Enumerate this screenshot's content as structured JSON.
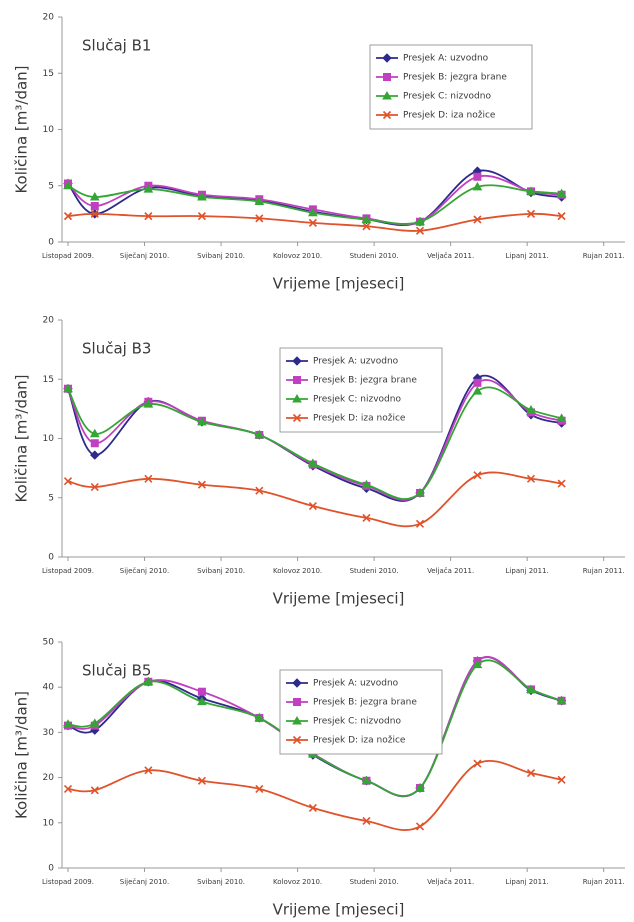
{
  "chart_data": [
    {
      "type": "line",
      "title": "Slučaj B1",
      "xlabel": "Vrijeme [mjeseci]",
      "ylabel": "Količina [m³/dan]",
      "x": [
        0,
        0.35,
        1.05,
        1.75,
        2.5,
        3.2,
        3.9,
        4.6,
        5.35,
        6.05,
        6.45
      ],
      "xlim": [
        0,
        7.2
      ],
      "xticks": [
        {
          "value": 0,
          "label": "Listopad 2009."
        },
        {
          "value": 1,
          "label": "Siječanj 2010."
        },
        {
          "value": 2,
          "label": "Svibanj 2010."
        },
        {
          "value": 3,
          "label": "Kolovoz 2010."
        },
        {
          "value": 4,
          "label": "Studeni 2010."
        },
        {
          "value": 5,
          "label": "Veljača 2011."
        },
        {
          "value": 6,
          "label": "Lipanj 2011."
        },
        {
          "value": 7,
          "label": "Rujan 2011."
        }
      ],
      "ylim": [
        0,
        20
      ],
      "yticks": [
        0,
        5,
        10,
        15,
        20
      ],
      "grid": false,
      "legend_position": "upper right",
      "series": [
        {
          "name": "Presjek A: uzvodno",
          "color": "#2e2a8c",
          "marker": "diamond",
          "values": [
            5.2,
            2.5,
            4.8,
            4.1,
            3.7,
            2.7,
            2.0,
            1.8,
            6.3,
            4.4,
            4.0
          ]
        },
        {
          "name": "Presjek B: jezgra brane",
          "color": "#c13fc1",
          "marker": "square",
          "values": [
            5.2,
            3.2,
            5.0,
            4.2,
            3.8,
            2.9,
            2.1,
            1.8,
            5.8,
            4.5,
            4.2
          ]
        },
        {
          "name": "Presjek C: nizvodno",
          "color": "#35a535",
          "marker": "triangle",
          "values": [
            5.0,
            4.0,
            4.7,
            4.0,
            3.6,
            2.6,
            2.0,
            1.8,
            4.9,
            4.5,
            4.3
          ]
        },
        {
          "name": "Presjek D: iza nožice",
          "color": "#e0522a",
          "marker": "x",
          "values": [
            2.3,
            2.5,
            2.3,
            2.3,
            2.1,
            1.7,
            1.4,
            1.0,
            2.0,
            2.5,
            2.3
          ]
        }
      ]
    },
    {
      "type": "line",
      "title": "Slučaj B3",
      "xlabel": "Vrijeme [mjeseci]",
      "ylabel": "Količina [m³/dan]",
      "x": [
        0,
        0.35,
        1.05,
        1.75,
        2.5,
        3.2,
        3.9,
        4.6,
        5.35,
        6.05,
        6.45
      ],
      "xlim": [
        0,
        7.2
      ],
      "xticks": [
        {
          "value": 0,
          "label": "Listopad 2009."
        },
        {
          "value": 1,
          "label": "Siječanj 2010."
        },
        {
          "value": 2,
          "label": "Svibanj 2010."
        },
        {
          "value": 3,
          "label": "Kolovoz 2010."
        },
        {
          "value": 4,
          "label": "Studeni 2010."
        },
        {
          "value": 5,
          "label": "Veljača 2011."
        },
        {
          "value": 6,
          "label": "Lipanj 2011."
        },
        {
          "value": 7,
          "label": "Rujan 2011."
        }
      ],
      "ylim": [
        0,
        20
      ],
      "yticks": [
        0,
        5,
        10,
        15,
        20
      ],
      "grid": false,
      "legend_position": "upper center",
      "series": [
        {
          "name": "Presjek A: uzvodno",
          "color": "#2e2a8c",
          "marker": "diamond",
          "values": [
            14.2,
            8.6,
            13.1,
            11.4,
            10.3,
            7.7,
            5.8,
            5.4,
            15.1,
            12.0,
            11.3
          ]
        },
        {
          "name": "Presjek B: jezgra brane",
          "color": "#c13fc1",
          "marker": "square",
          "values": [
            14.2,
            9.6,
            13.1,
            11.5,
            10.3,
            7.8,
            6.0,
            5.4,
            14.7,
            12.2,
            11.5
          ]
        },
        {
          "name": "Presjek C: nizvodno",
          "color": "#35a535",
          "marker": "triangle",
          "values": [
            14.2,
            10.4,
            12.9,
            11.4,
            10.3,
            7.9,
            6.1,
            5.4,
            14.0,
            12.4,
            11.7
          ]
        },
        {
          "name": "Presjek D: iza nožice",
          "color": "#e0522a",
          "marker": "x",
          "values": [
            6.4,
            5.9,
            6.6,
            6.1,
            5.6,
            4.3,
            3.3,
            2.8,
            6.9,
            6.6,
            6.2
          ]
        }
      ]
    },
    {
      "type": "line",
      "title": "Slučaj B5",
      "xlabel": "Vrijeme [mjeseci]",
      "ylabel": "Količina [m³/dan]",
      "x": [
        0,
        0.35,
        1.05,
        1.75,
        2.5,
        3.2,
        3.9,
        4.6,
        5.35,
        6.05,
        6.45
      ],
      "xlim": [
        0,
        7.2
      ],
      "xticks": [
        {
          "value": 0,
          "label": "Listopad 2009."
        },
        {
          "value": 1,
          "label": "Siječanj 2010."
        },
        {
          "value": 2,
          "label": "Svibanj 2010."
        },
        {
          "value": 3,
          "label": "Kolovoz 2010."
        },
        {
          "value": 4,
          "label": "Studeni 2010."
        },
        {
          "value": 5,
          "label": "Veljača 2011."
        },
        {
          "value": 6,
          "label": "Lipanj 2011."
        },
        {
          "value": 7,
          "label": "Rujan 2011."
        }
      ],
      "ylim": [
        0,
        50
      ],
      "yticks": [
        0,
        10,
        20,
        30,
        40,
        50
      ],
      "grid": false,
      "legend_position": "upper center",
      "series": [
        {
          "name": "Presjek A: uzvodno",
          "color": "#2e2a8c",
          "marker": "diamond",
          "values": [
            31.5,
            30.5,
            41.2,
            37.5,
            33.2,
            25.0,
            19.3,
            17.7,
            45.8,
            39.3,
            37.0
          ]
        },
        {
          "name": "Presjek B: jezgra brane",
          "color": "#c13fc1",
          "marker": "square",
          "values": [
            31.5,
            31.5,
            41.2,
            39.0,
            33.2,
            25.3,
            19.3,
            17.7,
            45.8,
            39.5,
            37.0
          ]
        },
        {
          "name": "Presjek C: nizvodno",
          "color": "#35a535",
          "marker": "triangle",
          "values": [
            31.8,
            32.0,
            41.2,
            36.8,
            33.2,
            25.2,
            19.3,
            17.7,
            45.0,
            39.5,
            37.0
          ]
        },
        {
          "name": "Presjek D: iza nožice",
          "color": "#e0522a",
          "marker": "x",
          "values": [
            17.5,
            17.2,
            21.6,
            19.3,
            17.5,
            13.3,
            10.4,
            9.2,
            23.1,
            21.0,
            19.5
          ]
        }
      ]
    }
  ]
}
